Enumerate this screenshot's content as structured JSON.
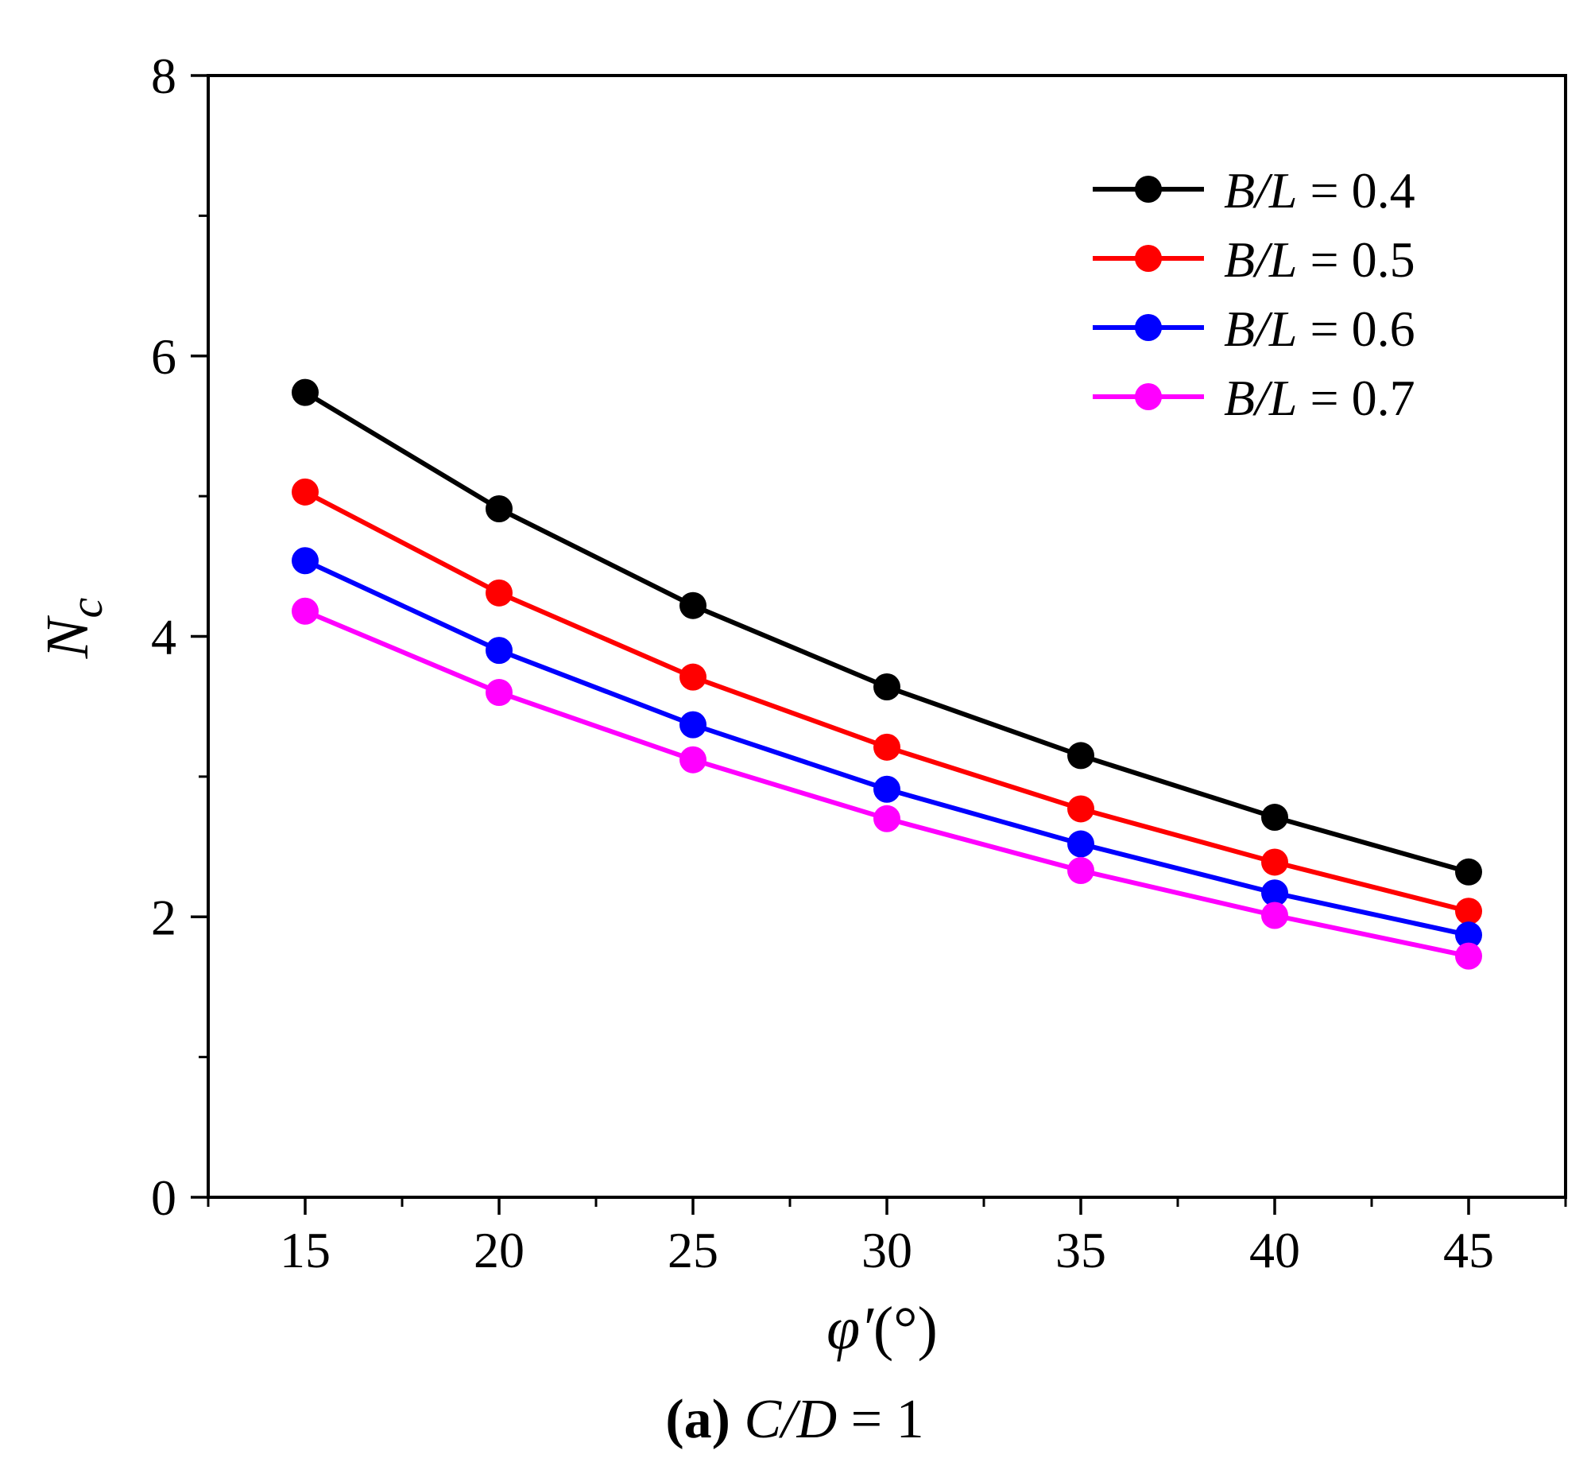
{
  "chart_data": {
    "type": "line",
    "title": "",
    "xlabel_symbol": "φ′",
    "xlabel_unit": "(°)",
    "ylabel_main": "N",
    "ylabel_sub": "c",
    "xlim": [
      12.5,
      47.5
    ],
    "ylim": [
      0,
      8
    ],
    "x_ticks": [
      15,
      20,
      25,
      30,
      35,
      40,
      45
    ],
    "y_ticks": [
      0,
      2,
      4,
      6,
      8
    ],
    "x_tick_labels": [
      "15",
      "20",
      "25",
      "30",
      "35",
      "40",
      "45"
    ],
    "y_tick_labels": [
      "0",
      "2",
      "4",
      "6",
      "8"
    ],
    "x_minor_ticks": [
      12.5,
      17.5,
      22.5,
      27.5,
      32.5,
      37.5,
      42.5,
      47.5
    ],
    "y_minor_ticks": [
      1,
      3,
      5,
      7
    ],
    "grid": false,
    "legend_position": "top-right",
    "x": [
      15,
      20,
      25,
      30,
      35,
      40,
      45
    ],
    "series": [
      {
        "name": "B/L = 0.4",
        "label_var": "B/L",
        "label_rest": " = 0.4",
        "color": "#000000",
        "values": [
          5.74,
          4.91,
          4.22,
          3.64,
          3.15,
          2.71,
          2.32
        ]
      },
      {
        "name": "B/L = 0.5",
        "label_var": "B/L",
        "label_rest": " = 0.5",
        "color": "#ff0000",
        "values": [
          5.03,
          4.31,
          3.71,
          3.21,
          2.77,
          2.39,
          2.04
        ]
      },
      {
        "name": "B/L = 0.6",
        "label_var": "B/L",
        "label_rest": " = 0.6",
        "color": "#0000ff",
        "values": [
          4.54,
          3.9,
          3.37,
          2.91,
          2.52,
          2.17,
          1.87
        ]
      },
      {
        "name": "B/L = 0.7",
        "label_var": "B/L",
        "label_rest": " = 0.7",
        "color": "#ff00ff",
        "values": [
          4.18,
          3.6,
          3.12,
          2.7,
          2.33,
          2.01,
          1.72
        ]
      }
    ],
    "caption": {
      "bold": "(a)",
      "var": "C/D",
      "rest": " = 1"
    }
  }
}
